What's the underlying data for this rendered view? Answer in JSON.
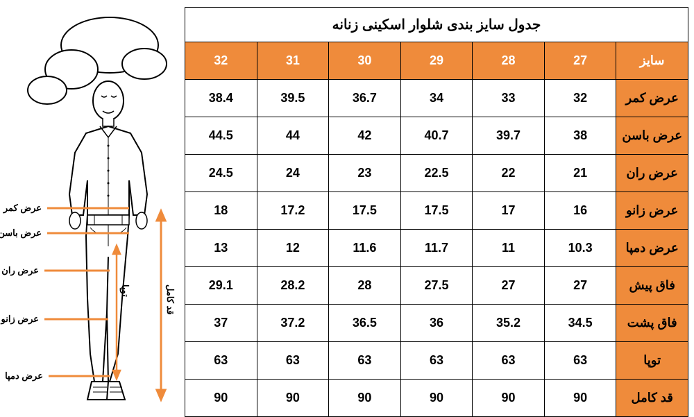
{
  "title": "جدول سایز بندی شلوار اسکینی زنانه",
  "header_bg": "#ef8b3b",
  "header_fg": "#ffffff",
  "label_bg": "#ef8b3b",
  "label_fg": "#000000",
  "cell_bg": "#ffffff",
  "border_color": "#000000",
  "sizes": [
    "32",
    "31",
    "30",
    "29",
    "28",
    "27"
  ],
  "size_label": "سایز",
  "rows": [
    {
      "label": "عرض کمر",
      "values": [
        "38.4",
        "39.5",
        "36.7",
        "34",
        "33",
        "32"
      ]
    },
    {
      "label": "عرض باسن",
      "values": [
        "44.5",
        "44",
        "42",
        "40.7",
        "39.7",
        "38"
      ]
    },
    {
      "label": "عرض ران",
      "values": [
        "24.5",
        "24",
        "23",
        "22.5",
        "22",
        "21"
      ]
    },
    {
      "label": "عرض زانو",
      "values": [
        "18",
        "17.2",
        "17.5",
        "17.5",
        "17",
        "16"
      ]
    },
    {
      "label": "عرض دمپا",
      "values": [
        "13",
        "12",
        "11.6",
        "11.7",
        "11",
        "10.3"
      ]
    },
    {
      "label": "فاق پیش",
      "values": [
        "29.1",
        "28.2",
        "28",
        "27.5",
        "27",
        "27"
      ]
    },
    {
      "label": "فاق پشت",
      "values": [
        "37",
        "37.2",
        "36.5",
        "36",
        "35.2",
        "34.5"
      ]
    },
    {
      "label": "توپا",
      "values": [
        "63",
        "63",
        "63",
        "63",
        "63",
        "63"
      ]
    },
    {
      "label": "قد کامل",
      "values": [
        "90",
        "90",
        "90",
        "90",
        "90",
        "90"
      ]
    }
  ],
  "diagram": {
    "arrow_color": "#ef8b3b",
    "line_color": "#000000",
    "labels": {
      "waist": "عرض کمر",
      "hip": "عرض باسن",
      "thigh": "عرض ران",
      "knee": "عرض زانو",
      "hem": "عرض دمپا",
      "inseam": "توپا",
      "full": "قد کامل"
    }
  }
}
